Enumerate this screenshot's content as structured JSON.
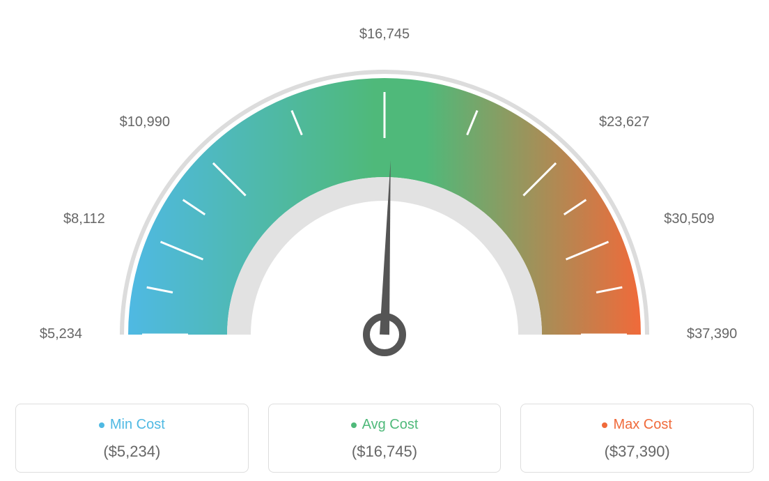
{
  "gauge": {
    "type": "gauge",
    "min": 5234,
    "avg": 16745,
    "max": 37390,
    "tick_values": [
      5234,
      8112,
      10990,
      16745,
      23627,
      30509,
      37390
    ],
    "tick_labels": [
      "$5,234",
      "$8,112",
      "$10,990",
      "$16,745",
      "$23,627",
      "$30,509",
      "$37,390"
    ],
    "tick_angles_deg": [
      180,
      157.5,
      135,
      90,
      45,
      22.5,
      0
    ],
    "minor_ticks_per_gap": 1,
    "colors": {
      "min": "#4fb9e3",
      "avg": "#4fb97a",
      "max": "#f06a3a",
      "outer_ring": "#dcdcdc",
      "inner_ring": "#e2e2e2",
      "tick": "#ffffff",
      "needle": "#555555",
      "label_text": "#666666",
      "background": "#ffffff"
    },
    "geometry": {
      "outer_radius": 380,
      "band_outer": 368,
      "band_inner": 226,
      "inner_ring_outer": 226,
      "inner_ring_inner": 192,
      "tick_outer": 348,
      "tick_inner_major": 282,
      "tick_inner_minor": 310,
      "tick_stroke_width": 3,
      "needle_length": 250,
      "needle_hub_r_outer": 26,
      "needle_hub_r_inner": 16,
      "label_radius": 430
    },
    "label_fontsize": 20
  },
  "legend": {
    "cards": [
      {
        "title": "Min Cost",
        "value": "($5,234)",
        "dot_color": "#4fb9e3"
      },
      {
        "title": "Avg Cost",
        "value": "($16,745)",
        "dot_color": "#4fb97a"
      },
      {
        "title": "Max Cost",
        "value": "($37,390)",
        "dot_color": "#f06a3a"
      }
    ],
    "title_colors": [
      "#4fb9e3",
      "#4fb97a",
      "#f06a3a"
    ],
    "border_color": "#dddddd",
    "border_radius": 8,
    "title_fontsize": 20,
    "value_fontsize": 22,
    "value_color": "#666666"
  }
}
